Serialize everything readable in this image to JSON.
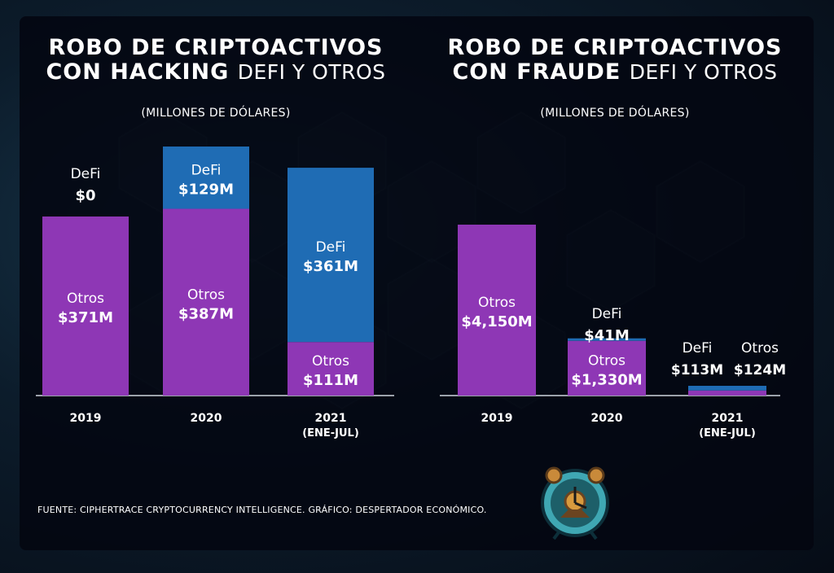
{
  "colors": {
    "otros": "#8e37b5",
    "defi": "#1f6cb4",
    "text": "#ffffff",
    "panel": "#050a16"
  },
  "left": {
    "title_bold_line1": "ROBO DE  CRIPTOACTIVOS",
    "title_bold_line2": "CON HACKING",
    "title_light_line2": "DeFi Y OTROS",
    "subtitle": "(MILLONES DE DÓLARES)"
  },
  "right": {
    "title_bold_line1": "ROBO DE  CRIPTOACTIVOS",
    "title_bold_line2": "CON FRAUDE",
    "title_light_line2": "DeFi Y OTROS",
    "subtitle": "(MILLONES DE DÓLARES)"
  },
  "footer": {
    "source": "FUENTE: CIPHERTRACE CRYPTOCURRENCY INTELLIGENCE.  GRÁFICO: DESPERTADOR ECONÓMICO."
  },
  "chart_data": [
    {
      "type": "bar",
      "stacked": true,
      "title": "ROBO DE  CRIPTOACTIVOS CON HACKING DeFi Y OTROS",
      "subtitle": "(MILLONES DE DÓLARES)",
      "categories": [
        "2019",
        "2020",
        "2021"
      ],
      "category_sublabels": [
        "",
        "",
        "(ENE-JUL)"
      ],
      "series": [
        {
          "name": "Otros",
          "values": [
            371,
            387,
            111
          ],
          "labels": [
            "$371M",
            "$387M",
            "$111M"
          ],
          "color": "#8e37b5"
        },
        {
          "name": "DeFi",
          "values": [
            0,
            129,
            361
          ],
          "labels": [
            "$0",
            "$129M",
            "$361M"
          ],
          "color": "#1f6cb4"
        }
      ]
    },
    {
      "type": "bar",
      "stacked": true,
      "title": "ROBO DE  CRIPTOACTIVOS CON FRAUDE DeFi Y OTROS",
      "subtitle": "(MILLONES DE DÓLARES)",
      "categories": [
        "2019",
        "2020",
        "2021"
      ],
      "category_sublabels": [
        "",
        "",
        "(ENE-JUL)"
      ],
      "series": [
        {
          "name": "Otros",
          "values": [
            4150,
            1330,
            124
          ],
          "labels": [
            "$4,150M",
            "$1,330M",
            "$124M"
          ],
          "color": "#8e37b5"
        },
        {
          "name": "DeFi",
          "values": [
            0,
            41,
            113
          ],
          "labels": [
            "",
            "$41M",
            "$113M"
          ],
          "color": "#1f6cb4"
        }
      ]
    }
  ]
}
